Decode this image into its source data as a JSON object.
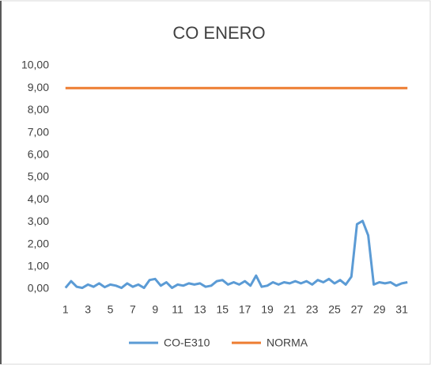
{
  "chart_data": {
    "type": "line",
    "title": "CO ENERO",
    "x": [
      1,
      1.5,
      2,
      2.5,
      3,
      3.5,
      4,
      4.5,
      5,
      5.5,
      6,
      6.5,
      7,
      7.5,
      8,
      8.5,
      9,
      9.5,
      10,
      10.5,
      11,
      11.5,
      12,
      12.5,
      13,
      13.5,
      14,
      14.5,
      15,
      15.5,
      16,
      16.5,
      17,
      17.5,
      18,
      18.5,
      19,
      19.5,
      20,
      20.5,
      21,
      21.5,
      22,
      22.5,
      23,
      23.5,
      24,
      24.5,
      25,
      25.5,
      26,
      26.5,
      27,
      27.5,
      28,
      28.5,
      29,
      29.5,
      30,
      30.5,
      31,
      31.5
    ],
    "series": [
      {
        "name": "CO-E310",
        "color": "#5b9bd5",
        "values": [
          0.05,
          0.35,
          0.1,
          0.05,
          0.2,
          0.1,
          0.25,
          0.08,
          0.2,
          0.15,
          0.05,
          0.25,
          0.1,
          0.2,
          0.05,
          0.4,
          0.45,
          0.15,
          0.3,
          0.05,
          0.2,
          0.15,
          0.25,
          0.2,
          0.25,
          0.1,
          0.15,
          0.35,
          0.4,
          0.2,
          0.3,
          0.2,
          0.35,
          0.15,
          0.6,
          0.1,
          0.15,
          0.3,
          0.2,
          0.3,
          0.25,
          0.35,
          0.25,
          0.35,
          0.2,
          0.4,
          0.3,
          0.45,
          0.25,
          0.4,
          0.2,
          0.55,
          2.9,
          3.05,
          2.4,
          0.2,
          0.3,
          0.25,
          0.3,
          0.15,
          0.25,
          0.3
        ]
      },
      {
        "name": "NORMA",
        "color": "#ed7d31",
        "values": [
          9,
          9,
          9,
          9,
          9,
          9,
          9,
          9,
          9,
          9,
          9,
          9,
          9,
          9,
          9,
          9,
          9,
          9,
          9,
          9,
          9,
          9,
          9,
          9,
          9,
          9,
          9,
          9,
          9,
          9,
          9,
          9,
          9,
          9,
          9,
          9,
          9,
          9,
          9,
          9,
          9,
          9,
          9,
          9,
          9,
          9,
          9,
          9,
          9,
          9,
          9,
          9,
          9,
          9,
          9,
          9,
          9,
          9,
          9,
          9,
          9,
          9
        ]
      }
    ],
    "xlim": [
      0.8,
      31.7
    ],
    "xticks": [
      1,
      3,
      5,
      7,
      9,
      11,
      13,
      15,
      17,
      19,
      21,
      23,
      25,
      27,
      29,
      31
    ],
    "ylim": [
      0,
      10
    ],
    "yticks": [
      {
        "value": 0,
        "label": "0,00"
      },
      {
        "value": 1,
        "label": "1,00"
      },
      {
        "value": 2,
        "label": "2,00"
      },
      {
        "value": 3,
        "label": "3,00"
      },
      {
        "value": 4,
        "label": "4,00"
      },
      {
        "value": 5,
        "label": "5,00"
      },
      {
        "value": 6,
        "label": "6,00"
      },
      {
        "value": 7,
        "label": "7,00"
      },
      {
        "value": 8,
        "label": "8,00"
      },
      {
        "value": 9,
        "label": "9,00"
      },
      {
        "value": 10,
        "label": "10,00"
      }
    ],
    "grid": false,
    "legend": "bottom"
  }
}
